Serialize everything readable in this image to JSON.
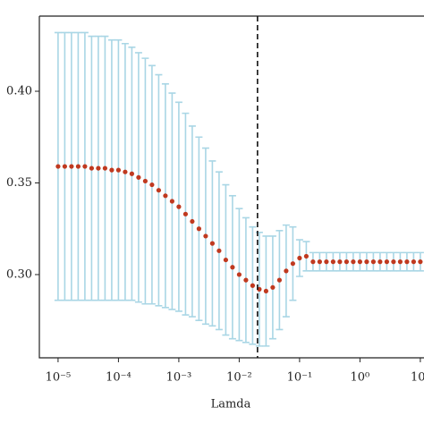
{
  "chart_data": {
    "type": "errorbar",
    "xlabel": "Lamda",
    "x": [
      1e-05,
      1.292e-05,
      1.668e-05,
      2.154e-05,
      2.783e-05,
      3.594e-05,
      4.642e-05,
      5.995e-05,
      7.743e-05,
      0.0001,
      0.0001292,
      0.0001668,
      0.0002154,
      0.0002783,
      0.0003594,
      0.0004642,
      0.0005995,
      0.0007743,
      0.001,
      0.001292,
      0.001668,
      0.002154,
      0.002783,
      0.003594,
      0.004642,
      0.005995,
      0.007743,
      0.01,
      0.01292,
      0.01668,
      0.02154,
      0.02783,
      0.03594,
      0.04642,
      0.05995,
      0.07743,
      0.1,
      0.1292,
      0.1668,
      0.2154,
      0.2783,
      0.3594,
      0.4642,
      0.5995,
      0.7743,
      1,
      1.292,
      1.668,
      2.154,
      2.783,
      3.594,
      4.642,
      5.995,
      7.743,
      10
    ],
    "values": [
      0.359,
      0.359,
      0.359,
      0.359,
      0.359,
      0.358,
      0.358,
      0.358,
      0.357,
      0.357,
      0.356,
      0.355,
      0.353,
      0.351,
      0.349,
      0.346,
      0.343,
      0.34,
      0.337,
      0.333,
      0.329,
      0.325,
      0.321,
      0.317,
      0.313,
      0.308,
      0.304,
      0.3,
      0.297,
      0.294,
      0.292,
      0.291,
      0.293,
      0.297,
      0.302,
      0.306,
      0.309,
      0.31,
      0.307,
      0.307,
      0.307,
      0.307,
      0.307,
      0.307,
      0.307,
      0.307,
      0.307,
      0.307,
      0.307,
      0.307,
      0.307,
      0.307,
      0.307,
      0.307,
      0.307
    ],
    "errors": [
      0.073,
      0.073,
      0.073,
      0.073,
      0.073,
      0.072,
      0.072,
      0.072,
      0.071,
      0.071,
      0.07,
      0.069,
      0.068,
      0.067,
      0.065,
      0.063,
      0.061,
      0.059,
      0.057,
      0.055,
      0.052,
      0.05,
      0.048,
      0.045,
      0.043,
      0.041,
      0.039,
      0.036,
      0.034,
      0.032,
      0.031,
      0.03,
      0.028,
      0.027,
      0.025,
      0.02,
      0.01,
      0.008,
      0.005,
      0.005,
      0.005,
      0.005,
      0.005,
      0.005,
      0.005,
      0.005,
      0.005,
      0.005,
      0.005,
      0.005,
      0.005,
      0.005,
      0.005,
      0.005,
      0.005
    ],
    "color": "#c0391f",
    "error_color": "#a9d6e5",
    "xscale": "log",
    "xlim": [
      4.9e-06,
      11.5
    ],
    "ylim": [
      0.2546,
      0.441
    ],
    "xticks": [
      {
        "value": 1e-05,
        "label": "10⁻⁵"
      },
      {
        "value": 0.0001,
        "label": "10⁻⁴"
      },
      {
        "value": 0.001,
        "label": "10⁻³"
      },
      {
        "value": 0.01,
        "label": "10⁻²"
      },
      {
        "value": 0.1,
        "label": "10⁻¹"
      },
      {
        "value": 1,
        "label": "10⁰"
      },
      {
        "value": 10,
        "label": "10¹"
      }
    ],
    "yticks": [
      {
        "value": 0.3,
        "label": "0.30"
      },
      0.35,
      {
        "value": 0.4,
        "label": "0.40"
      }
    ],
    "vline": 0.0201
  }
}
